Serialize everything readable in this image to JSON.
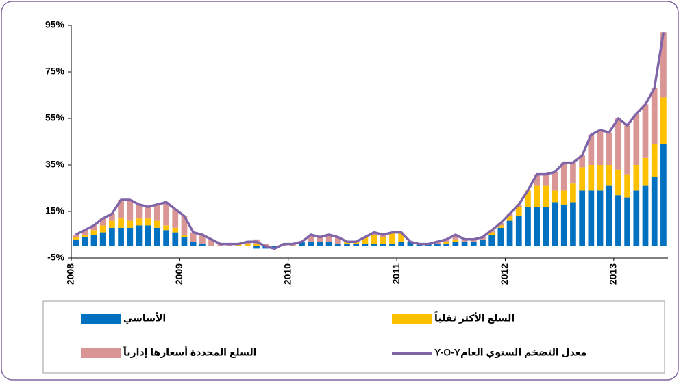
{
  "chart_data": {
    "type": "bar",
    "stacked": true,
    "categories": [
      "2008",
      null,
      null,
      null,
      null,
      null,
      null,
      null,
      null,
      null,
      null,
      null,
      "2009",
      null,
      null,
      null,
      null,
      null,
      null,
      null,
      null,
      null,
      null,
      null,
      "2010",
      null,
      null,
      null,
      null,
      null,
      null,
      null,
      null,
      null,
      null,
      null,
      "2011",
      null,
      null,
      null,
      null,
      null,
      null,
      null,
      null,
      null,
      null,
      null,
      "2012",
      null,
      null,
      null,
      null,
      null,
      null,
      null,
      null,
      null,
      null,
      null,
      "2013",
      null,
      null,
      null,
      null,
      null
    ],
    "series": [
      {
        "name": "الأساسي",
        "color": "#0070c0",
        "values": [
          3,
          4,
          5,
          6,
          8,
          8,
          8,
          9,
          9,
          8,
          7,
          6,
          4,
          2,
          1,
          0,
          0,
          0,
          0,
          0,
          -1,
          -1,
          -1,
          0,
          0,
          2,
          2,
          2,
          2,
          1,
          1,
          1,
          1,
          1,
          1,
          1,
          2,
          2,
          1,
          1,
          1,
          1,
          2,
          2,
          2,
          3,
          5,
          8,
          11,
          13,
          17,
          17,
          17,
          19,
          18,
          19,
          24,
          24,
          24,
          26,
          22,
          21,
          24,
          26,
          30,
          44
        ]
      },
      {
        "name": "السلع الأكثر تقلباً",
        "color": "#ffc000",
        "values": [
          1,
          1,
          2,
          3,
          3,
          4,
          3,
          3,
          3,
          3,
          2,
          2,
          1,
          0,
          0,
          0,
          0,
          0,
          1,
          1,
          1,
          0,
          0,
          0,
          0,
          0,
          0,
          0,
          0,
          0,
          1,
          1,
          3,
          4,
          3,
          5,
          4,
          0,
          0,
          0,
          0,
          1,
          1,
          0,
          0,
          0,
          1,
          1,
          2,
          4,
          7,
          9,
          9,
          5,
          6,
          8,
          10,
          11,
          11,
          9,
          11,
          10,
          11,
          12,
          14,
          20
        ]
      },
      {
        "name": "السلع المحددة أسعارها إدارياً",
        "color": "#d99694",
        "values": [
          1,
          2,
          2,
          3,
          3,
          8,
          9,
          6,
          5,
          7,
          10,
          8,
          8,
          4,
          4,
          3,
          1,
          1,
          0,
          1,
          2,
          1,
          0,
          1,
          1,
          0,
          3,
          2,
          3,
          3,
          0,
          0,
          0,
          1,
          1,
          0,
          0,
          0,
          0,
          0,
          1,
          1,
          2,
          1,
          1,
          1,
          1,
          1,
          1,
          1,
          0,
          5,
          5,
          8,
          12,
          9,
          5,
          13,
          15,
          14,
          22,
          21,
          22,
          23,
          24,
          28
        ]
      },
      {
        "name": "Y-O-Yمعدل التضخم السنوي العام",
        "color": "#7f65a8",
        "type": "line",
        "values": [
          5,
          7,
          9,
          12,
          14,
          20,
          20,
          18,
          17,
          18,
          19,
          16,
          13,
          6,
          5,
          3,
          1,
          1,
          1,
          2,
          2,
          0,
          -1,
          1,
          1,
          2,
          5,
          4,
          5,
          4,
          2,
          2,
          4,
          6,
          5,
          6,
          6,
          2,
          1,
          1,
          2,
          3,
          5,
          3,
          3,
          4,
          7,
          10,
          14,
          18,
          24,
          31,
          31,
          32,
          36,
          36,
          39,
          48,
          50,
          49,
          55,
          52,
          57,
          61,
          68,
          92
        ]
      }
    ],
    "ylim": [
      -5,
      95
    ],
    "yticks": [
      {
        "value": -5,
        "label": "-5%"
      },
      {
        "value": 15,
        "label": "15%"
      },
      {
        "value": 35,
        "label": "35%"
      },
      {
        "value": 55,
        "label": "55%"
      },
      {
        "value": 75,
        "label": "75%"
      },
      {
        "value": 95,
        "label": "95%"
      }
    ],
    "grid": false,
    "legend": "bottom"
  }
}
